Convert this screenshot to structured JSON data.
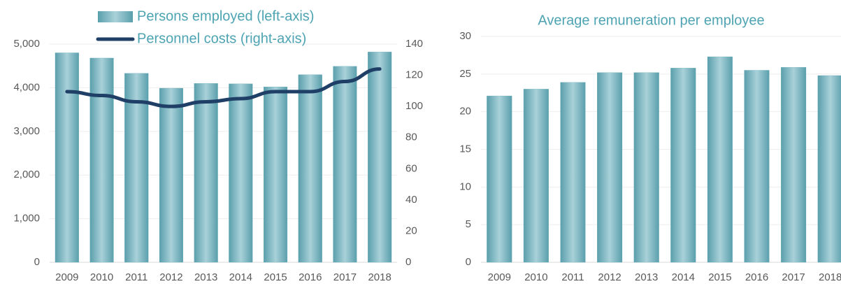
{
  "chart_data": [
    {
      "type": "combo",
      "categories": [
        "2009",
        "2010",
        "2011",
        "2012",
        "2013",
        "2014",
        "2015",
        "2016",
        "2017",
        "2018"
      ],
      "series": [
        {
          "name": "Persons employed (left-axis)",
          "color": "#6aafbc",
          "values": [
            4800,
            4680,
            4330,
            3990,
            4100,
            4090,
            4020,
            4300,
            4490,
            4820
          ]
        },
        {
          "name": "Personnel costs (right-axis)",
          "color": "#1f3f66",
          "axis": "y2",
          "values": [
            109.5,
            107,
            103,
            100,
            103,
            105,
            109.5,
            109.5,
            116,
            124
          ]
        }
      ],
      "ylim": [
        0,
        5000
      ],
      "yticks": [
        0,
        {
          "value": 1000,
          "label": "1,000"
        },
        {
          "value": 2000,
          "label": "2,000"
        },
        {
          "value": 3000,
          "label": "3,000"
        },
        {
          "value": 4000,
          "label": "4,000"
        },
        {
          "value": 5000,
          "label": "5,000"
        }
      ],
      "y2lim": [
        0,
        140
      ],
      "y2ticks": [
        0,
        20,
        40,
        60,
        80,
        100,
        120,
        140
      ],
      "grid": true
    },
    {
      "type": "bar",
      "title": "Average remuneration per employee",
      "categories": [
        "2009",
        "2010",
        "2011",
        "2012",
        "2013",
        "2014",
        "2015",
        "2016",
        "2017",
        "2018"
      ],
      "values": [
        22.1,
        23.0,
        23.9,
        25.2,
        25.2,
        25.8,
        27.3,
        25.5,
        25.9,
        24.8
      ],
      "color": "#6aafbc",
      "ylim": [
        0,
        30
      ],
      "yticks": [
        0,
        5,
        10,
        15,
        20,
        25,
        30
      ],
      "grid": true
    }
  ]
}
